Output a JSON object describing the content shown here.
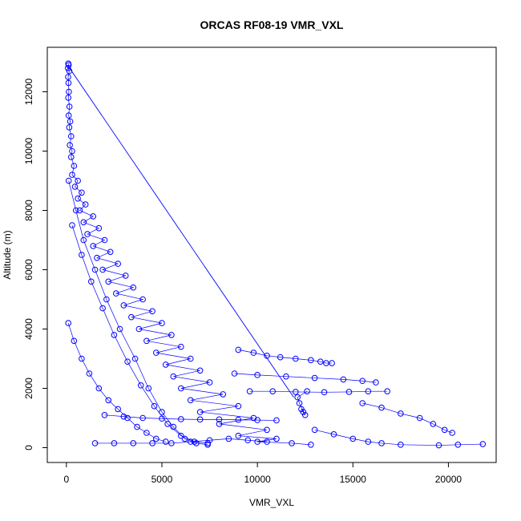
{
  "chart_data": {
    "type": "scatter",
    "title": "ORCAS RF08-19 VMR_VXL",
    "xlabel": "VMR_VXL",
    "ylabel": "Altitude (m)",
    "xlim": [
      -1000,
      22500
    ],
    "ylim": [
      -500,
      13500
    ],
    "x_ticks": [
      0,
      5000,
      10000,
      15000,
      20000
    ],
    "y_ticks": [
      0,
      2000,
      4000,
      6000,
      8000,
      10000,
      12000
    ],
    "x_tick_labels": [
      "0",
      "5000",
      "10000",
      "15000",
      "20000"
    ],
    "y_tick_labels": [
      "0",
      "2000",
      "4000",
      "6000",
      "8000",
      "10000",
      "12000"
    ],
    "grid": false,
    "legend": "none",
    "marker": "open-circle",
    "color": "#0000ff",
    "series": [
      {
        "points": [
          [
            100,
            12950
          ],
          [
            120,
            12900
          ],
          [
            80,
            12800
          ],
          [
            150,
            12700
          ],
          [
            90,
            12500
          ],
          [
            110,
            12300
          ],
          [
            130,
            12000
          ],
          [
            100,
            11800
          ],
          [
            160,
            11500
          ],
          [
            120,
            11200
          ],
          [
            200,
            11000
          ],
          [
            150,
            10800
          ],
          [
            250,
            10500
          ],
          [
            180,
            10200
          ],
          [
            300,
            10000
          ],
          [
            250,
            9800
          ],
          [
            400,
            9500
          ],
          [
            300,
            9200
          ],
          [
            600,
            9000
          ],
          [
            450,
            8800
          ],
          [
            800,
            8600
          ],
          [
            600,
            8400
          ],
          [
            1000,
            8200
          ],
          [
            700,
            8000
          ],
          [
            1400,
            7800
          ],
          [
            900,
            7600
          ],
          [
            1700,
            7400
          ],
          [
            1100,
            7200
          ],
          [
            2000,
            7000
          ],
          [
            1400,
            6800
          ],
          [
            2300,
            6600
          ],
          [
            1600,
            6400
          ],
          [
            2700,
            6200
          ],
          [
            1900,
            6000
          ],
          [
            3100,
            5800
          ],
          [
            2200,
            5600
          ],
          [
            3500,
            5400
          ],
          [
            2600,
            5200
          ],
          [
            4000,
            5000
          ],
          [
            3000,
            4800
          ],
          [
            4500,
            4600
          ],
          [
            3400,
            4400
          ],
          [
            5000,
            4200
          ],
          [
            3800,
            4000
          ],
          [
            5500,
            3800
          ],
          [
            4200,
            3600
          ],
          [
            6000,
            3400
          ],
          [
            4700,
            3200
          ],
          [
            6500,
            3000
          ],
          [
            5200,
            2800
          ],
          [
            7000,
            2600
          ],
          [
            5600,
            2400
          ],
          [
            7500,
            2200
          ],
          [
            6000,
            2000
          ],
          [
            8200,
            1800
          ],
          [
            6500,
            1600
          ],
          [
            9000,
            1400
          ],
          [
            7000,
            1200
          ],
          [
            9800,
            1000
          ],
          [
            8000,
            800
          ],
          [
            10500,
            600
          ],
          [
            9000,
            400
          ],
          [
            11000,
            300
          ],
          [
            10000,
            200
          ],
          [
            11800,
            150
          ],
          [
            12800,
            100
          ]
        ]
      },
      {
        "points": [
          [
            120,
            9000
          ],
          [
            500,
            8000
          ],
          [
            900,
            7000
          ],
          [
            1500,
            6000
          ],
          [
            2100,
            5000
          ],
          [
            2800,
            4000
          ],
          [
            3600,
            3000
          ],
          [
            4300,
            2000
          ],
          [
            5000,
            1200
          ],
          [
            5600,
            700
          ],
          [
            6200,
            300
          ],
          [
            6800,
            150
          ],
          [
            7400,
            100
          ]
        ]
      },
      {
        "points": [
          [
            300,
            7500
          ],
          [
            800,
            6500
          ],
          [
            1300,
            5600
          ],
          [
            1900,
            4700
          ],
          [
            2500,
            3800
          ],
          [
            3200,
            2900
          ],
          [
            3900,
            2100
          ],
          [
            4600,
            1400
          ],
          [
            5300,
            800
          ],
          [
            6000,
            400
          ],
          [
            6700,
            200
          ],
          [
            7400,
            150
          ]
        ]
      },
      {
        "points": [
          [
            100,
            4200
          ],
          [
            400,
            3600
          ],
          [
            800,
            3000
          ],
          [
            1200,
            2500
          ],
          [
            1700,
            2000
          ],
          [
            2200,
            1600
          ],
          [
            2700,
            1300
          ],
          [
            3200,
            1000
          ],
          [
            3700,
            700
          ],
          [
            4200,
            500
          ],
          [
            4700,
            300
          ],
          [
            5200,
            200
          ]
        ]
      },
      {
        "points": [
          [
            9000,
            3300
          ],
          [
            9800,
            3200
          ],
          [
            10500,
            3100
          ],
          [
            11200,
            3050
          ],
          [
            12000,
            3000
          ],
          [
            12800,
            2950
          ],
          [
            13300,
            2900
          ],
          [
            13600,
            2850
          ],
          [
            13900,
            2850
          ]
        ]
      },
      {
        "points": [
          [
            8800,
            2500
          ],
          [
            10000,
            2450
          ],
          [
            11500,
            2400
          ],
          [
            13000,
            2350
          ],
          [
            14500,
            2300
          ],
          [
            15500,
            2250
          ],
          [
            16200,
            2200
          ]
        ]
      },
      {
        "points": [
          [
            9600,
            1900
          ],
          [
            10800,
            1900
          ],
          [
            12000,
            1880
          ],
          [
            13500,
            1870
          ],
          [
            14800,
            1880
          ],
          [
            15800,
            1900
          ],
          [
            16800,
            1900
          ]
        ]
      },
      {
        "points": [
          [
            15500,
            1500
          ],
          [
            16500,
            1350
          ],
          [
            17500,
            1150
          ],
          [
            18500,
            1000
          ],
          [
            19200,
            800
          ],
          [
            19800,
            600
          ],
          [
            20200,
            500
          ]
        ]
      },
      {
        "points": [
          [
            13000,
            600
          ],
          [
            14000,
            450
          ],
          [
            15000,
            300
          ],
          [
            15800,
            200
          ],
          [
            16500,
            150
          ],
          [
            17500,
            100
          ],
          [
            19500,
            80
          ],
          [
            20500,
            100
          ],
          [
            21800,
            120
          ]
        ]
      },
      {
        "points": [
          [
            2000,
            1100
          ],
          [
            3000,
            1050
          ],
          [
            4000,
            1000
          ],
          [
            5000,
            980
          ],
          [
            6000,
            960
          ],
          [
            7000,
            950
          ],
          [
            8000,
            950
          ],
          [
            9000,
            940
          ],
          [
            10000,
            930
          ],
          [
            11000,
            920
          ]
        ]
      },
      {
        "points": [
          [
            12300,
            1300
          ],
          [
            12400,
            1200
          ],
          [
            12500,
            1100
          ],
          [
            12200,
            1500
          ],
          [
            12100,
            1700
          ],
          [
            12600,
            1900
          ]
        ]
      },
      {
        "points": [
          [
            1500,
            150
          ],
          [
            2500,
            150
          ],
          [
            3500,
            150
          ],
          [
            4500,
            150
          ],
          [
            5500,
            150
          ],
          [
            6500,
            200
          ],
          [
            7500,
            250
          ],
          [
            8500,
            300
          ],
          [
            9500,
            250
          ],
          [
            10500,
            200
          ]
        ]
      }
    ],
    "segments": [
      [
        [
          80,
          12880
        ],
        [
          11900,
          1700
        ]
      ]
    ]
  }
}
